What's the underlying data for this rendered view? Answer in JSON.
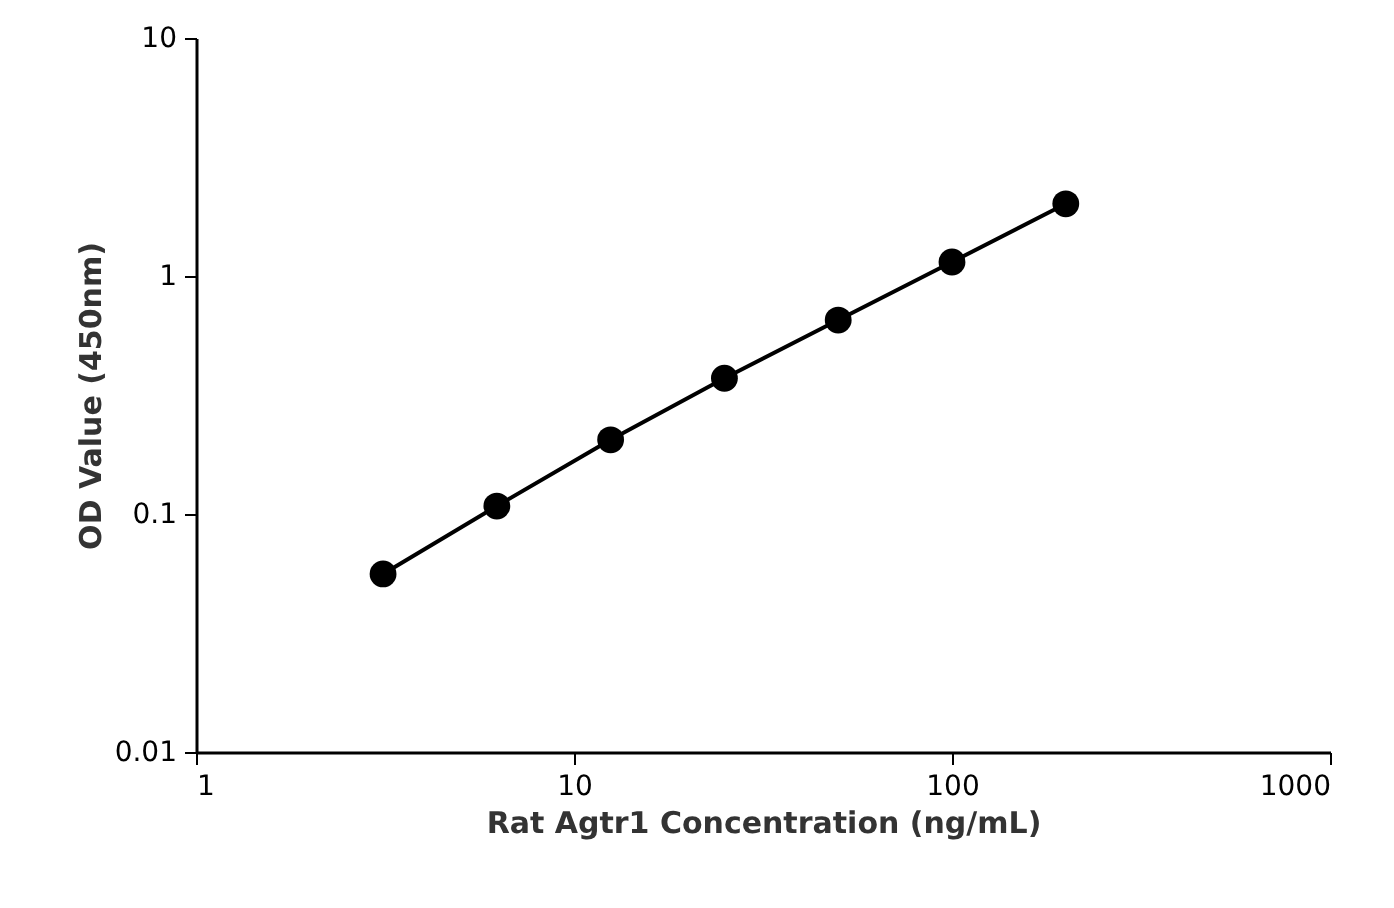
{
  "chart_data": {
    "type": "line",
    "xlabel": "Rat Agtr1 Concentration (ng/mL)",
    "ylabel": "OD Value (450nm)",
    "log": "xy",
    "x": [
      3.125,
      6.25,
      12.5,
      25,
      50,
      100,
      200
    ],
    "series": [
      {
        "color": "#000000",
        "values": [
          0.056,
          0.108,
          0.205,
          0.372,
          0.653,
          1.145,
          2.01
        ]
      }
    ],
    "xlim": [
      1,
      1000
    ],
    "xticks": [
      1,
      10,
      100,
      1000
    ],
    "ylim": [
      0.01,
      10
    ],
    "yticks": [
      0.01,
      0.1,
      1,
      10
    ],
    "grid": false,
    "marker": "circle",
    "line_style": "solid"
  }
}
